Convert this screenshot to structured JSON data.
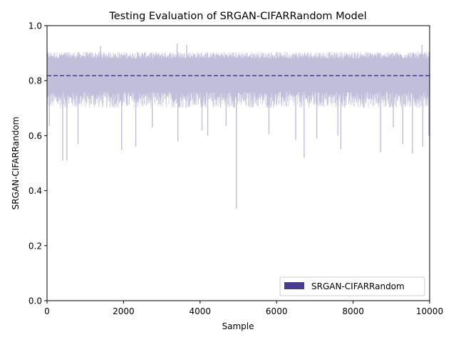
{
  "chart_data": {
    "type": "area",
    "title": "Testing Evaluation of SRGAN-CIFARRandom Model",
    "xlabel": "Sample",
    "ylabel": "SRGAN-CIFARRandom",
    "xlim": [
      0,
      10000
    ],
    "ylim": [
      0,
      1.0
    ],
    "x_ticks": [
      "0",
      "2000",
      "4000",
      "6000",
      "8000",
      "10000"
    ],
    "y_ticks": [
      "0.0",
      "0.2",
      "0.4",
      "0.6",
      "0.8",
      "1.0"
    ],
    "grid": false,
    "legend_position": "lower-right",
    "series": [
      {
        "name": "SRGAN-CIFARRandom",
        "color": "#483d8b",
        "band_color": "#c0bedb",
        "mean": 0.818,
        "n_samples": 10000,
        "typical_min": 0.7,
        "typical_max": 0.9,
        "band_lower": 0.0,
        "notable_low_points": [
          {
            "x": 60,
            "y": 0.635
          },
          {
            "x": 410,
            "y": 0.51
          },
          {
            "x": 520,
            "y": 0.51
          },
          {
            "x": 810,
            "y": 0.57
          },
          {
            "x": 1950,
            "y": 0.548
          },
          {
            "x": 2320,
            "y": 0.56
          },
          {
            "x": 2750,
            "y": 0.63
          },
          {
            "x": 3420,
            "y": 0.58
          },
          {
            "x": 4050,
            "y": 0.62
          },
          {
            "x": 4200,
            "y": 0.6
          },
          {
            "x": 4680,
            "y": 0.635
          },
          {
            "x": 4950,
            "y": 0.335
          },
          {
            "x": 5800,
            "y": 0.605
          },
          {
            "x": 6500,
            "y": 0.585
          },
          {
            "x": 6720,
            "y": 0.52
          },
          {
            "x": 7050,
            "y": 0.59
          },
          {
            "x": 7600,
            "y": 0.6
          },
          {
            "x": 7680,
            "y": 0.55
          },
          {
            "x": 8720,
            "y": 0.54
          },
          {
            "x": 9050,
            "y": 0.63
          },
          {
            "x": 9300,
            "y": 0.57
          },
          {
            "x": 9550,
            "y": 0.535
          },
          {
            "x": 9820,
            "y": 0.56
          },
          {
            "x": 9980,
            "y": 0.6
          }
        ],
        "notable_high_points": [
          {
            "x": 1400,
            "y": 0.925
          },
          {
            "x": 3400,
            "y": 0.935
          },
          {
            "x": 3650,
            "y": 0.93
          },
          {
            "x": 9800,
            "y": 0.93
          }
        ]
      }
    ]
  }
}
